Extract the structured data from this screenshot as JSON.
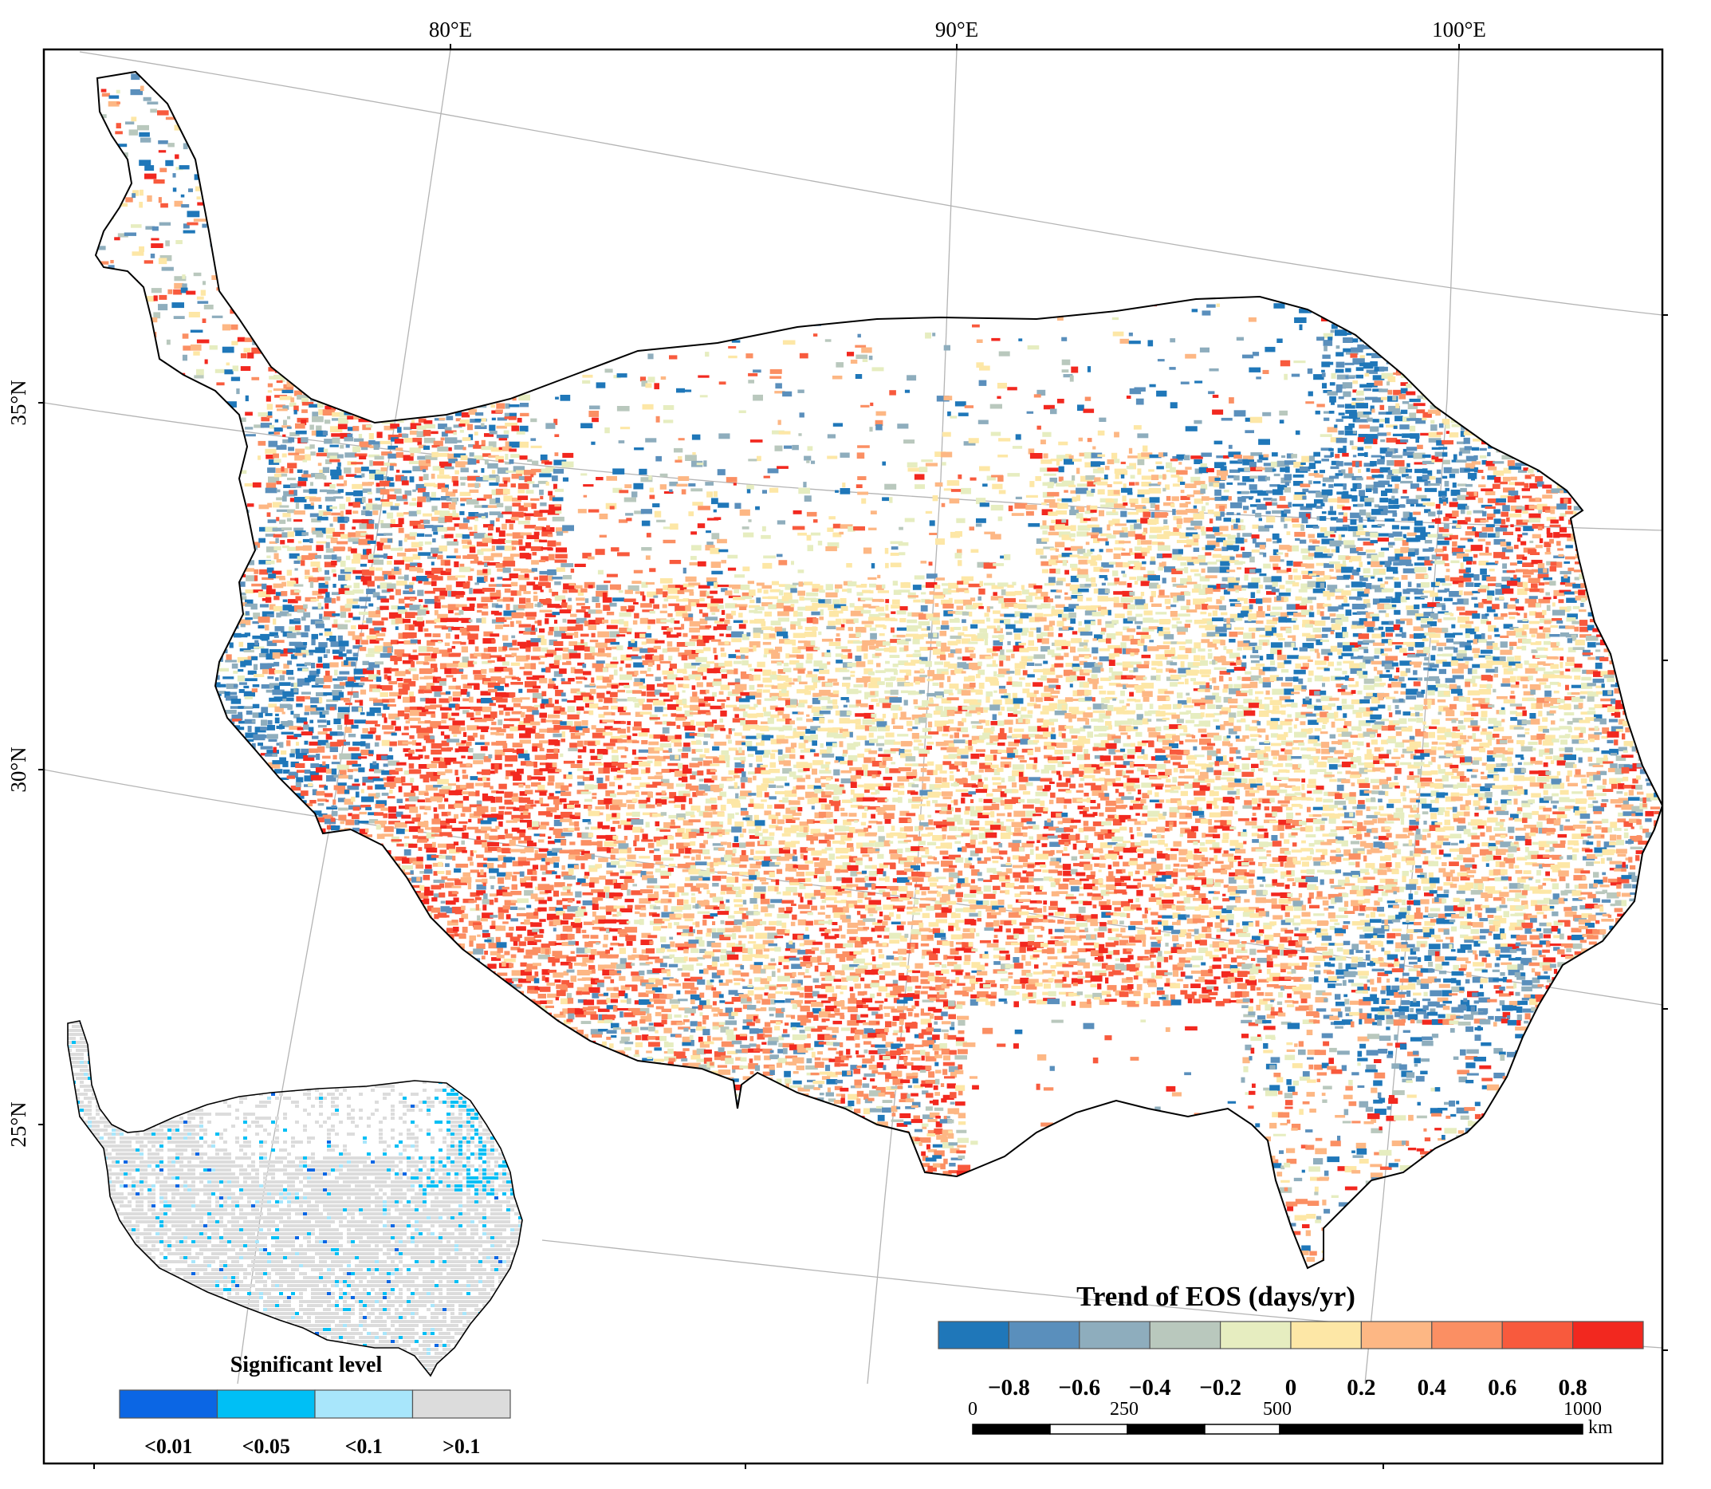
{
  "graticule": {
    "lon_labels": [
      "80°E",
      "90°E",
      "100°E"
    ],
    "lat_labels": [
      "35°N",
      "30°N",
      "25°N"
    ]
  },
  "eos_legend": {
    "title": "Trend of EOS (days/yr)",
    "colors": [
      "#1f77b9",
      "#5a8fbc",
      "#8eadbd",
      "#b9c8bd",
      "#e6edc0",
      "#fde7a6",
      "#fdb784",
      "#fb8f63",
      "#f85a3d",
      "#f2281f"
    ],
    "labels": [
      "−0.8",
      "−0.6",
      "−0.4",
      "−0.2",
      "0",
      "0.2",
      "0.4",
      "0.6",
      "0.8"
    ]
  },
  "significance_legend": {
    "title": "Significant level",
    "colors": [
      "#0b66e4",
      "#00bff5",
      "#a8e6fb",
      "#dcdcdc"
    ],
    "labels": [
      "<0.01",
      "<0.05",
      "<0.1",
      ">0.1"
    ]
  },
  "scale_bar": {
    "labels": [
      "0",
      "250",
      "500",
      "1000"
    ],
    "unit": "km"
  },
  "map_colors": {
    "outline": "#000000",
    "graticule": "#b4b4b4"
  }
}
